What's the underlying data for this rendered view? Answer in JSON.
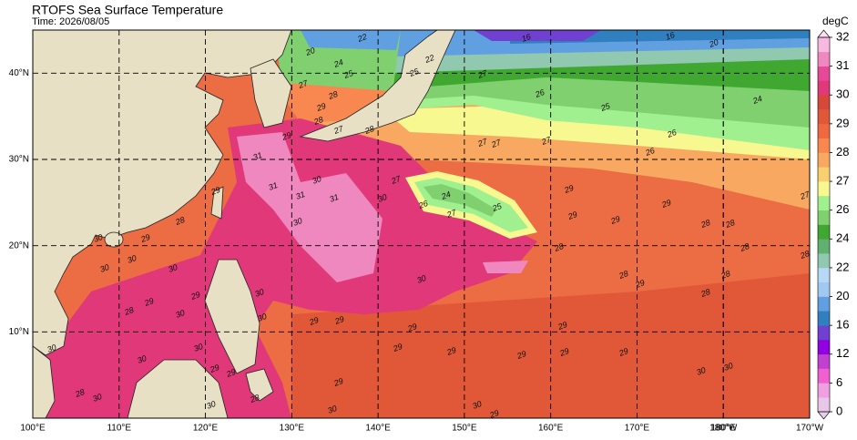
{
  "header": {
    "title": "RTOFS Sea Surface Temperature",
    "time": "Time: 2026/08/05"
  },
  "map": {
    "lonlim": [
      100,
      190
    ],
    "latlim": [
      0,
      45
    ],
    "lon_ticks": [
      {
        "value": 100,
        "label": "100°E"
      },
      {
        "value": 110,
        "label": "110°E"
      },
      {
        "value": 120,
        "label": "120°E"
      },
      {
        "value": 130,
        "label": "130°E"
      },
      {
        "value": 140,
        "label": "140°E"
      },
      {
        "value": 150,
        "label": "150°E"
      },
      {
        "value": 160,
        "label": "160°E"
      },
      {
        "value": 170,
        "label": "170°E"
      },
      {
        "value": 180,
        "label": "180°E"
      },
      {
        "value": 180,
        "label": "180°W"
      },
      {
        "value": 190,
        "label": "170°W"
      }
    ],
    "lat_ticks": [
      {
        "value": 10,
        "label": "10°N"
      },
      {
        "value": 20,
        "label": "20°N"
      },
      {
        "value": 30,
        "label": "30°N"
      },
      {
        "value": 40,
        "label": "40°N"
      }
    ],
    "grid": true,
    "contour_labels": [
      20,
      24,
      22,
      25,
      27,
      28,
      29,
      22,
      25,
      27,
      26,
      25,
      24,
      16,
      16,
      20,
      26,
      26,
      27,
      27,
      27,
      27,
      24,
      25,
      26,
      27,
      29,
      29,
      29,
      29,
      28,
      28,
      28,
      28,
      28,
      29,
      28,
      28,
      27,
      28,
      30,
      31,
      31,
      30,
      30,
      29,
      28,
      30,
      29,
      30,
      30,
      30,
      29,
      28,
      29,
      30,
      30,
      30,
      29,
      29,
      30,
      29,
      29,
      29,
      29,
      29,
      29,
      29,
      30,
      30,
      29,
      30,
      30,
      29,
      29,
      30,
      28,
      30,
      30,
      29,
      30,
      30,
      28,
      31,
      31,
      29,
      28,
      27,
      28
    ]
  },
  "colorbar": {
    "label": "degC",
    "levels": [
      0,
      3,
      6,
      9,
      12,
      14,
      16,
      18,
      20,
      21,
      22,
      23,
      24,
      25,
      26,
      26.5,
      27,
      27.5,
      28,
      28.5,
      29,
      29.5,
      30,
      30.5,
      31,
      31.5,
      32
    ],
    "colors": [
      "#e8c8e8",
      "#f0a0e0",
      "#f060d0",
      "#c040d0",
      "#9000e0",
      "#7040d0",
      "#3080c0",
      "#60a0e0",
      "#a0c8f0",
      "#b8d8f8",
      "#90c8b0",
      "#60b070",
      "#40a830",
      "#80d070",
      "#a0f090",
      "#f8f890",
      "#f8d070",
      "#f8a860",
      "#f88850",
      "#f06840",
      "#e05838",
      "#d84838",
      "#e03878",
      "#e84898",
      "#f088c0",
      "#f8b8e0"
    ],
    "under_color": "#e8d0e8",
    "over_color": "#f8e0f0",
    "ticks": [
      0,
      6,
      12,
      16,
      20,
      22,
      24,
      26,
      27,
      28,
      29,
      30,
      31,
      32
    ]
  }
}
